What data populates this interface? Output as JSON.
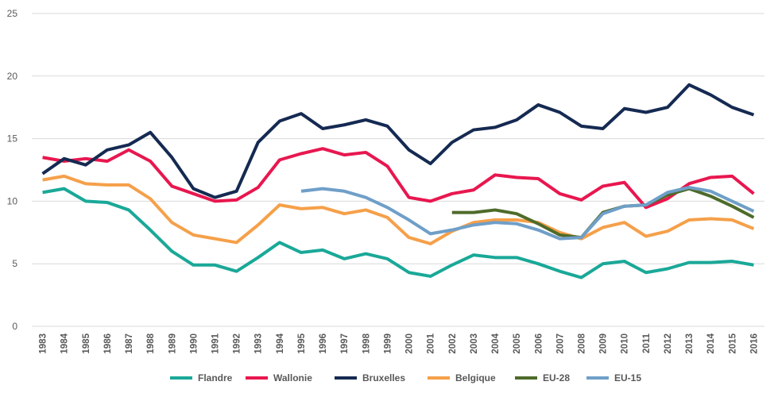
{
  "chart_data": {
    "type": "line",
    "title": "",
    "xlabel": "",
    "ylabel": "",
    "ylim": [
      0,
      25
    ],
    "yticks": [
      0,
      5,
      10,
      15,
      20,
      25
    ],
    "grid": true,
    "legend_position": "bottom",
    "x": [
      "1983",
      "1984",
      "1985",
      "1986",
      "1987",
      "1988",
      "1989",
      "1990",
      "1991",
      "1992",
      "1993",
      "1994",
      "1995",
      "1996",
      "1997",
      "1998",
      "1999",
      "2000",
      "2001",
      "2002",
      "2003",
      "2004",
      "2005",
      "2006",
      "2007",
      "2008",
      "2009",
      "2010",
      "2011",
      "2012",
      "2013",
      "2014",
      "2015",
      "2016"
    ],
    "series": [
      {
        "name": "Flandre",
        "color": "#1aa898",
        "values": [
          10.7,
          11.0,
          10.0,
          9.9,
          9.3,
          7.7,
          6.0,
          4.9,
          4.9,
          4.4,
          5.5,
          6.7,
          5.9,
          6.1,
          5.4,
          5.8,
          5.4,
          4.3,
          4.0,
          4.9,
          5.7,
          5.5,
          5.5,
          5.0,
          4.4,
          3.9,
          5.0,
          5.2,
          4.3,
          4.6,
          5.1,
          5.1,
          5.2,
          4.9
        ]
      },
      {
        "name": "Wallonie",
        "color": "#e8174f",
        "values": [
          13.5,
          13.2,
          13.4,
          13.2,
          14.1,
          13.2,
          11.2,
          10.6,
          10.0,
          10.1,
          11.1,
          13.3,
          13.8,
          14.2,
          13.7,
          13.9,
          12.8,
          10.3,
          10.0,
          10.6,
          10.9,
          12.1,
          11.9,
          11.8,
          10.6,
          10.1,
          11.2,
          11.5,
          9.5,
          10.2,
          11.4,
          11.9,
          12.0,
          10.6
        ]
      },
      {
        "name": "Bruxelles",
        "color": "#152a52",
        "values": [
          12.2,
          13.4,
          12.9,
          14.1,
          14.5,
          15.5,
          13.5,
          11.0,
          10.3,
          10.8,
          14.7,
          16.4,
          17.0,
          15.8,
          16.1,
          16.5,
          16.0,
          14.1,
          13.0,
          14.7,
          15.7,
          15.9,
          16.5,
          17.7,
          17.1,
          16.0,
          15.8,
          17.4,
          17.1,
          17.5,
          19.3,
          18.5,
          17.5,
          16.9
        ]
      },
      {
        "name": "Belgique",
        "color": "#f5a04a",
        "values": [
          11.7,
          12.0,
          11.4,
          11.3,
          11.3,
          10.2,
          8.3,
          7.3,
          7.0,
          6.7,
          8.1,
          9.7,
          9.4,
          9.5,
          9.0,
          9.3,
          8.7,
          7.1,
          6.6,
          7.6,
          8.3,
          8.5,
          8.5,
          8.3,
          7.5,
          7.0,
          7.9,
          8.3,
          7.2,
          7.6,
          8.5,
          8.6,
          8.5,
          7.8
        ]
      },
      {
        "name": "EU-28",
        "color": "#4e6b2a",
        "values": [
          null,
          null,
          null,
          null,
          null,
          null,
          null,
          null,
          null,
          null,
          null,
          null,
          null,
          null,
          null,
          null,
          null,
          null,
          null,
          9.1,
          9.1,
          9.3,
          9.0,
          8.2,
          7.3,
          7.1,
          9.1,
          9.6,
          9.7,
          10.5,
          11.0,
          10.4,
          9.6,
          8.7
        ]
      },
      {
        "name": "EU-15",
        "color": "#6f9fc8",
        "values": [
          null,
          null,
          null,
          null,
          null,
          null,
          null,
          null,
          null,
          null,
          null,
          null,
          10.8,
          11.0,
          10.8,
          10.3,
          9.5,
          8.5,
          7.4,
          7.7,
          8.1,
          8.3,
          8.2,
          7.7,
          7.0,
          7.1,
          9.0,
          9.6,
          9.7,
          10.7,
          11.1,
          10.8,
          10.0,
          9.2
        ]
      }
    ]
  }
}
